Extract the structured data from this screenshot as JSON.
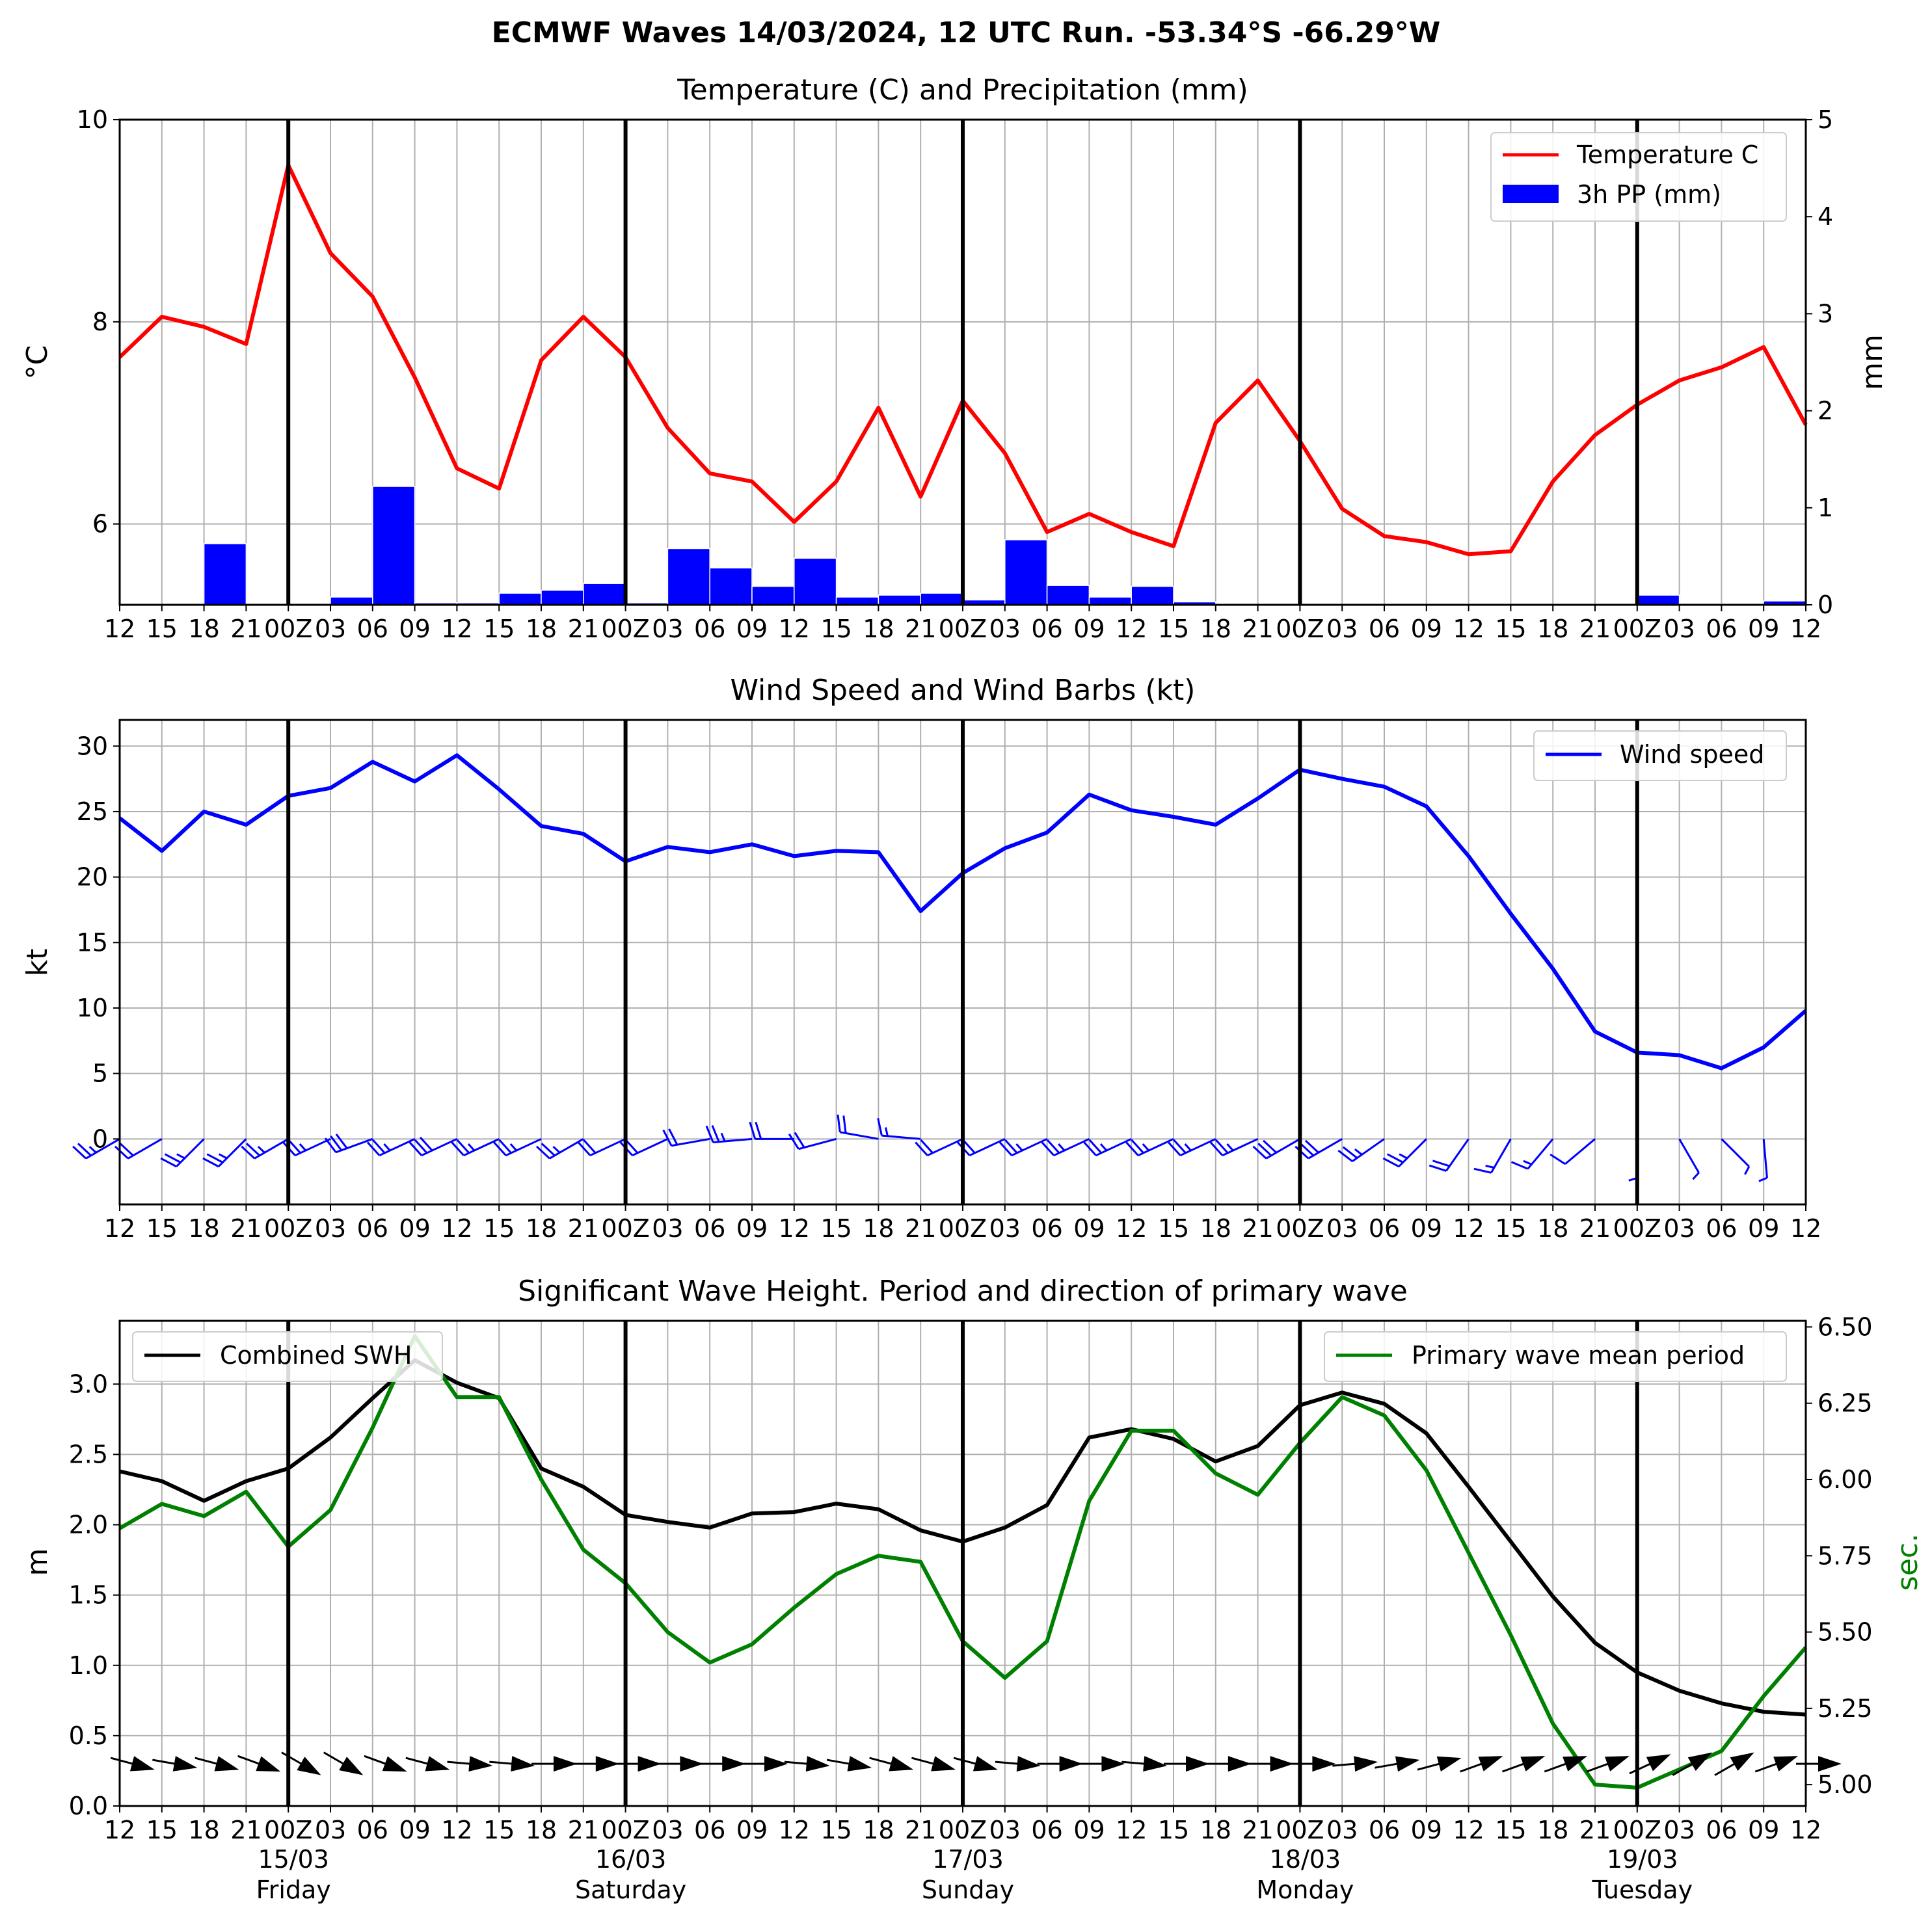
{
  "suptitle": "ECMWF Waves 14/03/2024, 12 UTC Run. -53.34°S -66.29°W",
  "time_ticks": [
    "12",
    "15",
    "18",
    "21",
    "00Z",
    "03",
    "06",
    "09",
    "12",
    "15",
    "18",
    "21",
    "00Z",
    "03",
    "06",
    "09",
    "12",
    "15",
    "18",
    "21",
    "00Z",
    "03",
    "06",
    "09",
    "12",
    "15",
    "18",
    "21",
    "00Z",
    "03",
    "06",
    "09",
    "12",
    "15",
    "18",
    "21",
    "00Z",
    "03",
    "06",
    "09",
    "12"
  ],
  "date_labels": [
    {
      "date": "15/03",
      "day": "Friday",
      "index": 4
    },
    {
      "date": "16/03",
      "day": "Saturday",
      "index": 12
    },
    {
      "date": "17/03",
      "day": "Sunday",
      "index": 20
    },
    {
      "date": "18/03",
      "day": "Monday",
      "index": 28
    },
    {
      "date": "19/03",
      "day": "Tuesday",
      "index": 36
    }
  ],
  "colors": {
    "temperature": "#ff0000",
    "precip": "#0000ff",
    "wind": "#0000ff",
    "swh": "#000000",
    "period": "#008000",
    "grid": "#b0b0b0"
  },
  "chart_data": [
    {
      "type": "line",
      "title": "Temperature (C) and Precipitation (mm)",
      "ylabel": "°C",
      "y2label": "mm",
      "ylim": [
        5.2,
        10
      ],
      "y2lim": [
        0,
        5
      ],
      "yticks": [
        "6",
        "8",
        "10"
      ],
      "y2ticks": [
        "0",
        "1",
        "2",
        "3",
        "4",
        "5"
      ],
      "legend_position": "top-right",
      "grid": true,
      "series": [
        {
          "name": "Temperature C",
          "axis": "left",
          "values": [
            7.65,
            8.05,
            7.95,
            7.78,
            9.55,
            8.68,
            8.25,
            7.45,
            6.55,
            6.35,
            7.62,
            8.05,
            7.65,
            6.95,
            6.5,
            6.42,
            6.02,
            6.42,
            7.15,
            6.27,
            7.22,
            6.7,
            5.92,
            6.1,
            5.92,
            5.78,
            7.0,
            7.42,
            6.82,
            6.15,
            5.88,
            5.82,
            5.7,
            5.73,
            6.42,
            6.88,
            7.18,
            7.42,
            7.55,
            7.75,
            6.98
          ]
        },
        {
          "name": "3h PP (mm)",
          "axis": "right",
          "type": "bar",
          "values": [
            0,
            0,
            0.63,
            0,
            0,
            0.08,
            1.22,
            0.02,
            0.02,
            0.12,
            0.15,
            0.22,
            0.02,
            0.58,
            0.38,
            0.19,
            0.48,
            0.08,
            0.1,
            0.12,
            0.05,
            0.67,
            0.2,
            0.08,
            0.19,
            0.03,
            0,
            0,
            0,
            0,
            0,
            0,
            0,
            0,
            0,
            0,
            0.1,
            0.01,
            0,
            0.04
          ]
        }
      ]
    },
    {
      "type": "line",
      "title": "Wind Speed and Wind Barbs (kt)",
      "ylabel": "kt",
      "ylim": [
        -5,
        32
      ],
      "yticks": [
        "0",
        "5",
        "10",
        "15",
        "20",
        "25",
        "30"
      ],
      "legend_position": "top-right",
      "grid": true,
      "series": [
        {
          "name": "Wind speed",
          "values": [
            24.5,
            22.0,
            25.0,
            24.0,
            26.2,
            26.8,
            28.8,
            27.3,
            29.3,
            26.7,
            23.9,
            23.3,
            21.2,
            22.3,
            21.9,
            22.5,
            21.6,
            22.0,
            21.9,
            17.4,
            20.3,
            22.2,
            23.4,
            26.3,
            25.1,
            24.6,
            24.0,
            26.0,
            28.2,
            27.5,
            26.9,
            25.4,
            21.6,
            17.2,
            13.0,
            8.2,
            6.6,
            6.4,
            5.4,
            7.0,
            9.8
          ]
        }
      ],
      "barb_directions_deg": [
        240,
        240,
        225,
        225,
        240,
        245,
        250,
        245,
        245,
        245,
        245,
        240,
        245,
        245,
        260,
        265,
        270,
        255,
        280,
        275,
        245,
        245,
        245,
        245,
        245,
        245,
        245,
        245,
        240,
        240,
        235,
        225,
        215,
        210,
        220,
        230,
        180,
        150,
        135,
        175,
        null
      ]
    },
    {
      "type": "line",
      "title": "Significant Wave Height. Period and direction of primary wave",
      "ylabel": "m",
      "y2label": "sec.",
      "ylim": [
        0,
        3.45
      ],
      "y2lim": [
        4.93,
        6.52
      ],
      "yticks": [
        "0.0",
        "0.5",
        "1.0",
        "1.5",
        "2.0",
        "2.5",
        "3.0"
      ],
      "y2ticks": [
        "5.00",
        "5.25",
        "5.50",
        "5.75",
        "6.00",
        "6.25",
        "6.50"
      ],
      "grid": true,
      "series": [
        {
          "name": "Combined SWH",
          "axis": "left",
          "legend_position": "top-left",
          "values": [
            2.38,
            2.31,
            2.17,
            2.31,
            2.4,
            2.62,
            2.9,
            3.17,
            3.01,
            2.9,
            2.4,
            2.27,
            2.07,
            2.02,
            1.98,
            2.08,
            2.09,
            2.15,
            2.11,
            1.96,
            1.88,
            1.98,
            2.14,
            2.62,
            2.68,
            2.61,
            2.45,
            2.56,
            2.85,
            2.94,
            2.86,
            2.65,
            2.27,
            1.88,
            1.49,
            1.16,
            0.95,
            0.82,
            0.73,
            0.67,
            0.65
          ]
        },
        {
          "name": "Primary wave mean period",
          "axis": "right",
          "legend_position": "top-right",
          "values": [
            5.84,
            5.92,
            5.88,
            5.96,
            5.78,
            5.9,
            6.17,
            6.47,
            6.27,
            6.27,
            6.0,
            5.77,
            5.66,
            5.5,
            5.4,
            5.46,
            5.58,
            5.69,
            5.75,
            5.73,
            5.47,
            5.35,
            5.47,
            5.93,
            6.16,
            6.16,
            6.02,
            5.95,
            6.12,
            6.27,
            6.21,
            6.03,
            5.76,
            5.49,
            5.2,
            5.0,
            4.99,
            5.05,
            5.11,
            5.29,
            5.45
          ]
        }
      ],
      "wave_directions_deg": [
        285,
        280,
        285,
        290,
        300,
        300,
        290,
        285,
        275,
        275,
        270,
        270,
        270,
        270,
        270,
        270,
        275,
        280,
        285,
        285,
        285,
        275,
        270,
        270,
        275,
        270,
        270,
        270,
        270,
        265,
        260,
        255,
        250,
        250,
        250,
        250,
        245,
        240,
        240,
        250,
        270
      ]
    }
  ]
}
